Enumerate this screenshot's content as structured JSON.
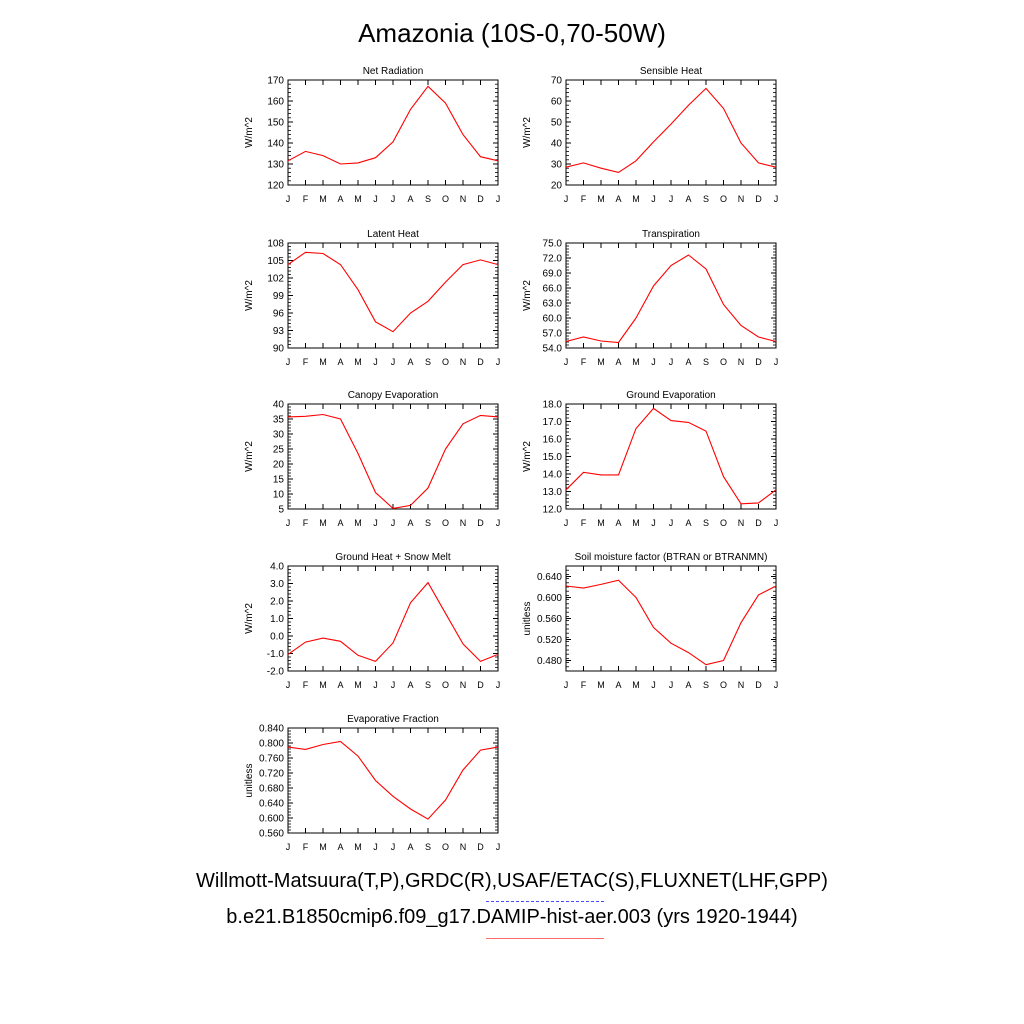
{
  "title": "Amazonia (10S-0,70-50W)",
  "legend": {
    "obs_label": "Willmott-Matsuura(T,P),GRDC(R),USAF/ETAC(S),FLUXNET(LHF,GPP)",
    "obs_color": "#4a4aff",
    "obs_style": "dashed",
    "model_label": "b.e21.B1850cmip6.f09_g17.DAMIP-hist-aer.003 (yrs 1920-1944)",
    "model_color": "#ff0000",
    "model_style": "solid"
  },
  "chart_data": [
    {
      "type": "line",
      "title": "Net Radiation",
      "ylabel": "W/m^2",
      "categories": [
        "J",
        "F",
        "M",
        "A",
        "M",
        "J",
        "J",
        "A",
        "S",
        "O",
        "N",
        "D",
        "J"
      ],
      "ylim": [
        120,
        170
      ],
      "yticks": [
        "120",
        "130",
        "140",
        "150",
        "160",
        "170"
      ],
      "series": [
        {
          "color": "#ff0000",
          "values": [
            131.5,
            136,
            134,
            130,
            130.5,
            133,
            140.5,
            156,
            167,
            159,
            144,
            133.5,
            131.5
          ]
        }
      ]
    },
    {
      "type": "line",
      "title": "Sensible Heat",
      "ylabel": "W/m^2",
      "categories": [
        "J",
        "F",
        "M",
        "A",
        "M",
        "J",
        "J",
        "A",
        "S",
        "O",
        "N",
        "D",
        "J"
      ],
      "ylim": [
        20,
        70
      ],
      "yticks": [
        "20",
        "30",
        "40",
        "50",
        "60",
        "70"
      ],
      "series": [
        {
          "color": "#ff0000",
          "values": [
            28.5,
            30.5,
            28,
            26,
            31.5,
            40.5,
            49,
            58,
            66,
            56.5,
            40,
            30.5,
            28.5
          ]
        }
      ]
    },
    {
      "type": "line",
      "title": "Latent Heat",
      "ylabel": "W/m^2",
      "categories": [
        "J",
        "F",
        "M",
        "A",
        "M",
        "J",
        "J",
        "A",
        "S",
        "O",
        "N",
        "D",
        "J"
      ],
      "ylim": [
        90,
        108
      ],
      "yticks": [
        "90",
        "93",
        "96",
        "99",
        "102",
        "105",
        "108"
      ],
      "series": [
        {
          "color": "#ff0000",
          "values": [
            104.3,
            106.4,
            106.2,
            104.3,
            100,
            94.5,
            92.8,
            96,
            98,
            101.3,
            104.3,
            105.1,
            104.3
          ]
        }
      ]
    },
    {
      "type": "line",
      "title": "Transpiration",
      "ylabel": "W/m^2",
      "categories": [
        "J",
        "F",
        "M",
        "A",
        "M",
        "J",
        "J",
        "A",
        "S",
        "O",
        "N",
        "D",
        "J"
      ],
      "ylim": [
        54,
        75
      ],
      "yticks": [
        "54.0",
        "57.0",
        "60.0",
        "63.0",
        "66.0",
        "69.0",
        "72.0",
        "75.0"
      ],
      "series": [
        {
          "color": "#ff0000",
          "values": [
            55.3,
            56.2,
            55.4,
            55.1,
            60,
            66.4,
            70.5,
            72.6,
            69.8,
            62.7,
            58.5,
            56.2,
            55.3
          ]
        }
      ]
    },
    {
      "type": "line",
      "title": "Canopy Evaporation",
      "ylabel": "W/m^2",
      "categories": [
        "J",
        "F",
        "M",
        "A",
        "M",
        "J",
        "J",
        "A",
        "S",
        "O",
        "N",
        "D",
        "J"
      ],
      "ylim": [
        5,
        40
      ],
      "yticks": [
        "5",
        "10",
        "15",
        "20",
        "25",
        "30",
        "35",
        "40"
      ],
      "series": [
        {
          "color": "#ff0000",
          "values": [
            35.7,
            35.9,
            36.5,
            35,
            23.5,
            10.5,
            5.2,
            6.2,
            12,
            25,
            33.4,
            36.2,
            35.7
          ]
        }
      ]
    },
    {
      "type": "line",
      "title": "Ground Evaporation",
      "ylabel": "W/m^2",
      "categories": [
        "J",
        "F",
        "M",
        "A",
        "M",
        "J",
        "J",
        "A",
        "S",
        "O",
        "N",
        "D",
        "J"
      ],
      "ylim": [
        12,
        18
      ],
      "yticks": [
        "12.0",
        "13.0",
        "14.0",
        "15.0",
        "16.0",
        "17.0",
        "18.0"
      ],
      "series": [
        {
          "color": "#ff0000",
          "values": [
            13.1,
            14.1,
            13.95,
            13.95,
            16.6,
            17.75,
            17.05,
            16.95,
            16.45,
            13.85,
            12.3,
            12.35,
            13.1
          ]
        }
      ]
    },
    {
      "type": "line",
      "title": "Ground Heat + Snow Melt",
      "ylabel": "W/m^2",
      "categories": [
        "J",
        "F",
        "M",
        "A",
        "M",
        "J",
        "J",
        "A",
        "S",
        "O",
        "N",
        "D",
        "J"
      ],
      "ylim": [
        -2,
        4
      ],
      "yticks": [
        "-2.0",
        "-1.0",
        "0.0",
        "1.0",
        "2.0",
        "3.0",
        "4.0"
      ],
      "series": [
        {
          "color": "#ff0000",
          "values": [
            -1.05,
            -0.35,
            -0.12,
            -0.3,
            -1.1,
            -1.45,
            -0.4,
            1.9,
            3.05,
            1.3,
            -0.45,
            -1.45,
            -1.05
          ]
        }
      ]
    },
    {
      "type": "line",
      "title": "Soil moisture factor (BTRAN or BTRANMN)",
      "ylabel": "unitless",
      "categories": [
        "J",
        "F",
        "M",
        "A",
        "M",
        "J",
        "J",
        "A",
        "S",
        "O",
        "N",
        "D",
        "J"
      ],
      "ylim": [
        0.46,
        0.66
      ],
      "yticks": [
        "0.480",
        "0.520",
        "0.560",
        "0.600",
        "0.640"
      ],
      "series": [
        {
          "color": "#ff0000",
          "values": [
            0.622,
            0.618,
            0.625,
            0.633,
            0.6,
            0.543,
            0.513,
            0.495,
            0.472,
            0.48,
            0.552,
            0.605,
            0.622
          ]
        }
      ]
    },
    {
      "type": "line",
      "title": "Evaporative Fraction",
      "ylabel": "unitless",
      "categories": [
        "J",
        "F",
        "M",
        "A",
        "M",
        "J",
        "J",
        "A",
        "S",
        "O",
        "N",
        "D",
        "J"
      ],
      "ylim": [
        0.56,
        0.84
      ],
      "yticks": [
        "0.560",
        "0.600",
        "0.640",
        "0.680",
        "0.720",
        "0.760",
        "0.800",
        "0.840"
      ],
      "series": [
        {
          "color": "#ff0000",
          "values": [
            0.789,
            0.783,
            0.796,
            0.804,
            0.765,
            0.7,
            0.658,
            0.624,
            0.597,
            0.648,
            0.728,
            0.781,
            0.789
          ]
        }
      ]
    }
  ]
}
